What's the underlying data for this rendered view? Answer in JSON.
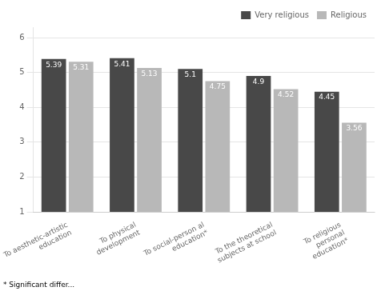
{
  "chart_data": {
    "type": "bar",
    "categories": [
      "To aesthetic-artistic\neducation",
      "To physical\ndevelopment",
      "To social-person al\neducation*",
      "To the theoretical\nsubjects at school",
      "To religious\npersonal\neducation*"
    ],
    "series": [
      {
        "name": "Very religious",
        "color": "#484848",
        "values": [
          5.39,
          5.41,
          5.1,
          4.9,
          4.45
        ]
      },
      {
        "name": "Religious",
        "color": "#b8b8b8",
        "values": [
          5.31,
          5.13,
          4.75,
          4.52,
          3.56
        ]
      }
    ],
    "ylim": [
      1,
      6.3
    ],
    "yticks": [
      1,
      2,
      3,
      4,
      5,
      6
    ],
    "grid": true,
    "legend": "upper right",
    "data_labels": true,
    "footnote": "* Significant differ..."
  }
}
